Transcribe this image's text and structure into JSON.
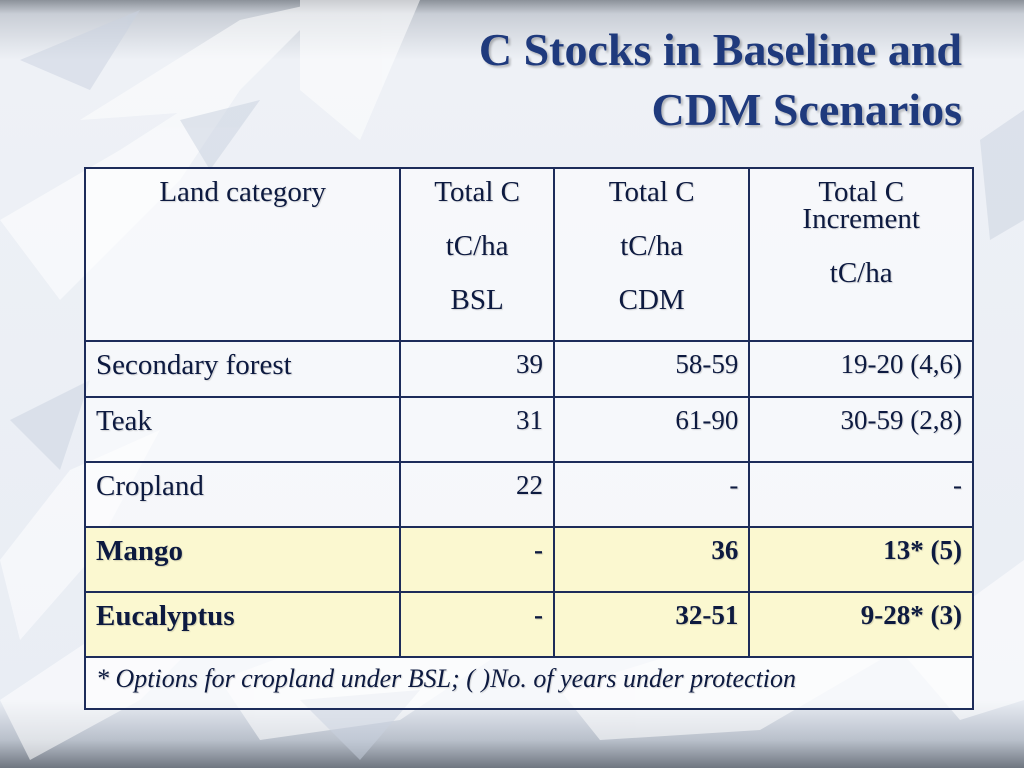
{
  "slide": {
    "title_line1": "C Stocks in Baseline and",
    "title_line2": "CDM Scenarios"
  },
  "table": {
    "headers": [
      {
        "lines": [
          "Land category"
        ]
      },
      {
        "lines": [
          "Total C",
          "tC/ha",
          "BSL"
        ]
      },
      {
        "lines": [
          "Total C",
          "tC/ha",
          "CDM"
        ]
      },
      {
        "lines": [
          "Total C",
          "Increment",
          "tC/ha"
        ]
      }
    ],
    "rows": [
      {
        "category": "Secondary forest",
        "bsl": "39",
        "cdm": "58-59",
        "increment": "19-20 (4,6)",
        "highlight": false
      },
      {
        "category": "Teak",
        "bsl": "31",
        "cdm": "61-90",
        "increment": "30-59 (2,8)",
        "highlight": false
      },
      {
        "category": "Cropland",
        "bsl": "22",
        "cdm": "-",
        "increment": "-",
        "highlight": false
      },
      {
        "category": "Mango",
        "bsl": "-",
        "cdm": "36",
        "increment": "13* (5)",
        "highlight": true
      },
      {
        "category": "Eucalyptus",
        "bsl": "-",
        "cdm": "32-51",
        "increment": "9-28* (3)",
        "highlight": true
      }
    ],
    "footnote": "* Options for cropland under BSL; ( )No. of years under protection",
    "highlight_color": "#fbf8d0",
    "border_color": "#1d2c5a"
  },
  "colors": {
    "title": "#1f3a7d",
    "text": "#0d1a40"
  }
}
